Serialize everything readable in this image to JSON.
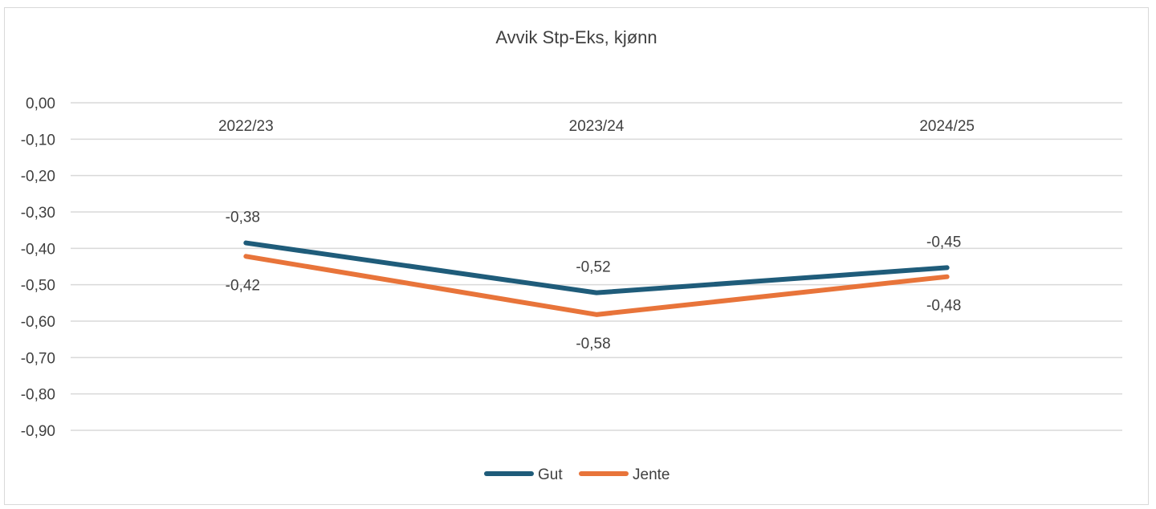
{
  "chart_data": {
    "type": "line",
    "title": "Avvik Stp-Eks, kjønn",
    "xlabel": "",
    "ylabel": "",
    "categories": [
      "2022/23",
      "2023/24",
      "2024/25"
    ],
    "yticks": [
      "0,00",
      "-0,10",
      "-0,20",
      "-0,30",
      "-0,40",
      "-0,50",
      "-0,60",
      "-0,70",
      "-0,80",
      "-0,90"
    ],
    "ylim": [
      -0.9,
      0
    ],
    "grid": true,
    "legend": "bottom",
    "series": [
      {
        "name": "Gut",
        "color": "#1f5c7a",
        "values": [
          -0.385,
          -0.522,
          -0.453
        ],
        "labels": [
          "-0,38",
          "-0,52",
          "-0,45"
        ]
      },
      {
        "name": "Jente",
        "color": "#e8743a",
        "values": [
          -0.422,
          -0.582,
          -0.478
        ],
        "labels": [
          "-0,42",
          "-0,58",
          "-0,48"
        ]
      }
    ]
  }
}
